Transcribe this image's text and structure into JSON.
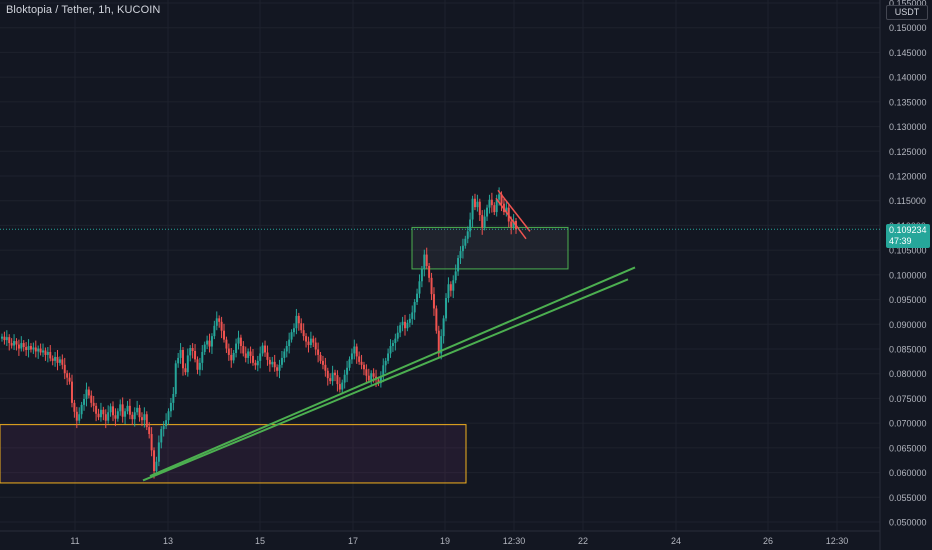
{
  "header": {
    "title": "Bloktopia / Tether, 1h, KUCOIN",
    "currency": "USDT"
  },
  "last_price": {
    "value": "0.109234",
    "countdown": "47:39"
  },
  "colors": {
    "background": "#131722",
    "up": "#26a69a",
    "down": "#ef5350",
    "grid": "#1e222d",
    "support_zone": "#f2b01e",
    "resistance_zone": "#4caf50",
    "trendline": "#4caf50",
    "wedge": "#ef5350"
  },
  "chart_data": {
    "type": "candlestick",
    "symbol": "Bloktopia / Tether",
    "interval": "1h",
    "exchange": "KUCOIN",
    "x_tick_labels": [
      "11",
      "13",
      "15",
      "17",
      "19",
      "12:30",
      "22",
      "24",
      "26",
      "12:30"
    ],
    "y_tick_labels": [
      "0.155000",
      "0.150000",
      "0.145000",
      "0.140000",
      "0.135000",
      "0.130000",
      "0.125000",
      "0.120000",
      "0.115000",
      "0.110000",
      "0.105000",
      "0.100000",
      "0.095000",
      "0.090000",
      "0.085000",
      "0.080000",
      "0.075000",
      "0.070000",
      "0.065000",
      "0.060000",
      "0.055000",
      "0.050000"
    ],
    "ylim": [
      0.05,
      0.155
    ],
    "last_price": 0.109234,
    "series_close": [
      0.0875,
      0.0868,
      0.0874,
      0.0862,
      0.0857,
      0.0866,
      0.0859,
      0.0851,
      0.0862,
      0.0854,
      0.0848,
      0.0856,
      0.0849,
      0.0853,
      0.0845,
      0.0851,
      0.0843,
      0.0847,
      0.0838,
      0.0844,
      0.0831,
      0.0826,
      0.0834,
      0.0822,
      0.0829,
      0.0818,
      0.0801,
      0.0792,
      0.0784,
      0.0741,
      0.0723,
      0.0705,
      0.0718,
      0.0737,
      0.0749,
      0.0768,
      0.0756,
      0.0741,
      0.0735,
      0.0719,
      0.0712,
      0.0727,
      0.0718,
      0.0705,
      0.0722,
      0.0734,
      0.0716,
      0.0709,
      0.0724,
      0.0738,
      0.0713,
      0.0724,
      0.0735,
      0.0717,
      0.0708,
      0.0722,
      0.0731,
      0.0712,
      0.0706,
      0.0718,
      0.0692,
      0.0678,
      0.0645,
      0.0603,
      0.0622,
      0.0661,
      0.0688,
      0.0694,
      0.0706,
      0.0724,
      0.0741,
      0.0759,
      0.0821,
      0.0832,
      0.0848,
      0.0811,
      0.0803,
      0.0837,
      0.0852,
      0.0846,
      0.0829,
      0.0808,
      0.0822,
      0.0844,
      0.0859,
      0.0867,
      0.0855,
      0.0876,
      0.0897,
      0.0912,
      0.0905,
      0.0887,
      0.0869,
      0.0851,
      0.0838,
      0.0827,
      0.0842,
      0.0861,
      0.0873,
      0.0856,
      0.0841,
      0.0832,
      0.0845,
      0.0836,
      0.0822,
      0.0817,
      0.0826,
      0.0841,
      0.0857,
      0.0843,
      0.0828,
      0.0819,
      0.0824,
      0.0813,
      0.0806,
      0.0818,
      0.0832,
      0.0845,
      0.0856,
      0.0869,
      0.0884,
      0.0892,
      0.0917,
      0.0902,
      0.0888,
      0.0876,
      0.0865,
      0.0858,
      0.0871,
      0.0863,
      0.0849,
      0.0838,
      0.0826,
      0.0818,
      0.0806,
      0.0791,
      0.0785,
      0.0802,
      0.0797,
      0.0779,
      0.0768,
      0.0782,
      0.0798,
      0.0812,
      0.0829,
      0.0841,
      0.0855,
      0.0835,
      0.0824,
      0.0818,
      0.0809,
      0.0796,
      0.0787,
      0.0801,
      0.0794,
      0.0788,
      0.0781,
      0.0795,
      0.0817,
      0.0826,
      0.0841,
      0.0856,
      0.0862,
      0.0871,
      0.0883,
      0.0898,
      0.0905,
      0.0892,
      0.0903,
      0.0911,
      0.0924,
      0.0945,
      0.0962,
      0.0987,
      0.1012,
      0.1041,
      0.1018,
      0.0994,
      0.0961,
      0.0932,
      0.0887,
      0.0841,
      0.0876,
      0.0912,
      0.0953,
      0.0981,
      0.0968,
      0.0989,
      0.1007,
      0.1034,
      0.1048,
      0.1059,
      0.1073,
      0.1088,
      0.1112,
      0.1154,
      0.1137,
      0.1148,
      0.1121,
      0.1096,
      0.1118,
      0.1136,
      0.1152,
      0.1141,
      0.1127,
      0.1152,
      0.1163,
      0.1144,
      0.1127,
      0.1136,
      0.1108,
      0.1097,
      0.1109,
      0.1092
    ]
  },
  "annotations": {
    "support_zone": {
      "y_top": 0.0697,
      "y_bottom": 0.0579
    },
    "resistance_zone": {
      "y_top": 0.1096,
      "y_bottom": 0.1012
    },
    "trendline_upper": {
      "y_start": 0.0593,
      "y_end": 0.1015
    },
    "trendline_lower": {
      "y_start": 0.0584,
      "y_end": 0.0991
    },
    "wedge_upper": {
      "y_start": 0.1171,
      "y_end": 0.1088
    },
    "wedge_lower": {
      "y_start": 0.1155,
      "y_end": 0.1073
    }
  }
}
